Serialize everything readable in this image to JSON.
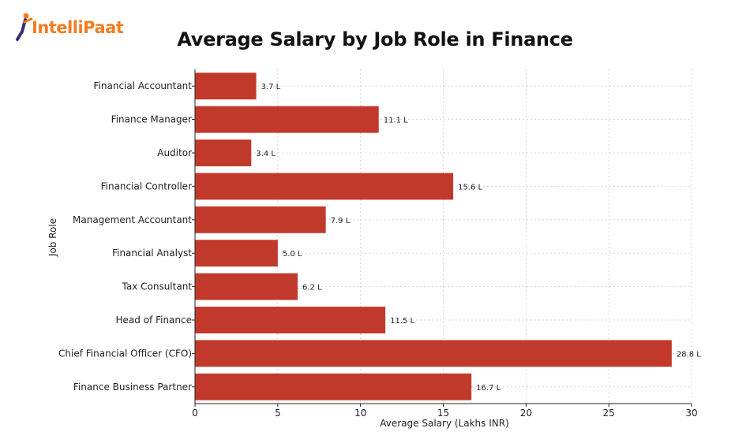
{
  "brand": {
    "name": "IntelliPaat"
  },
  "colors": {
    "bar": "#c0392b",
    "accent": "#f47c20",
    "axis": "#222222",
    "grid": "#cccccc"
  },
  "chart_data": {
    "type": "bar",
    "orientation": "horizontal",
    "title": "Average Salary by Job Role in Finance",
    "xlabel": "Average Salary (Lakhs INR)",
    "ylabel": "Job Role",
    "xlim": [
      0,
      30
    ],
    "xticks": [
      0,
      5,
      10,
      15,
      20,
      25,
      30
    ],
    "grid": true,
    "categories": [
      "Financial Accountant",
      "Finance Manager",
      "Auditor",
      "Financial Controller",
      "Management Accountant",
      "Financial Analyst",
      "Tax Consultant",
      "Head of Finance",
      "Chief Financial Officer (CFO)",
      "Finance Business Partner"
    ],
    "values": [
      3.7,
      11.1,
      3.4,
      15.6,
      7.9,
      5.0,
      6.2,
      11.5,
      28.8,
      16.7
    ],
    "value_labels": [
      "3.7 L",
      "11.1 L",
      "3.4 L",
      "15.6 L",
      "7.9 L",
      "5.0 L",
      "6.2 L",
      "11.5 L",
      "28.8 L",
      "16.7 L"
    ]
  }
}
